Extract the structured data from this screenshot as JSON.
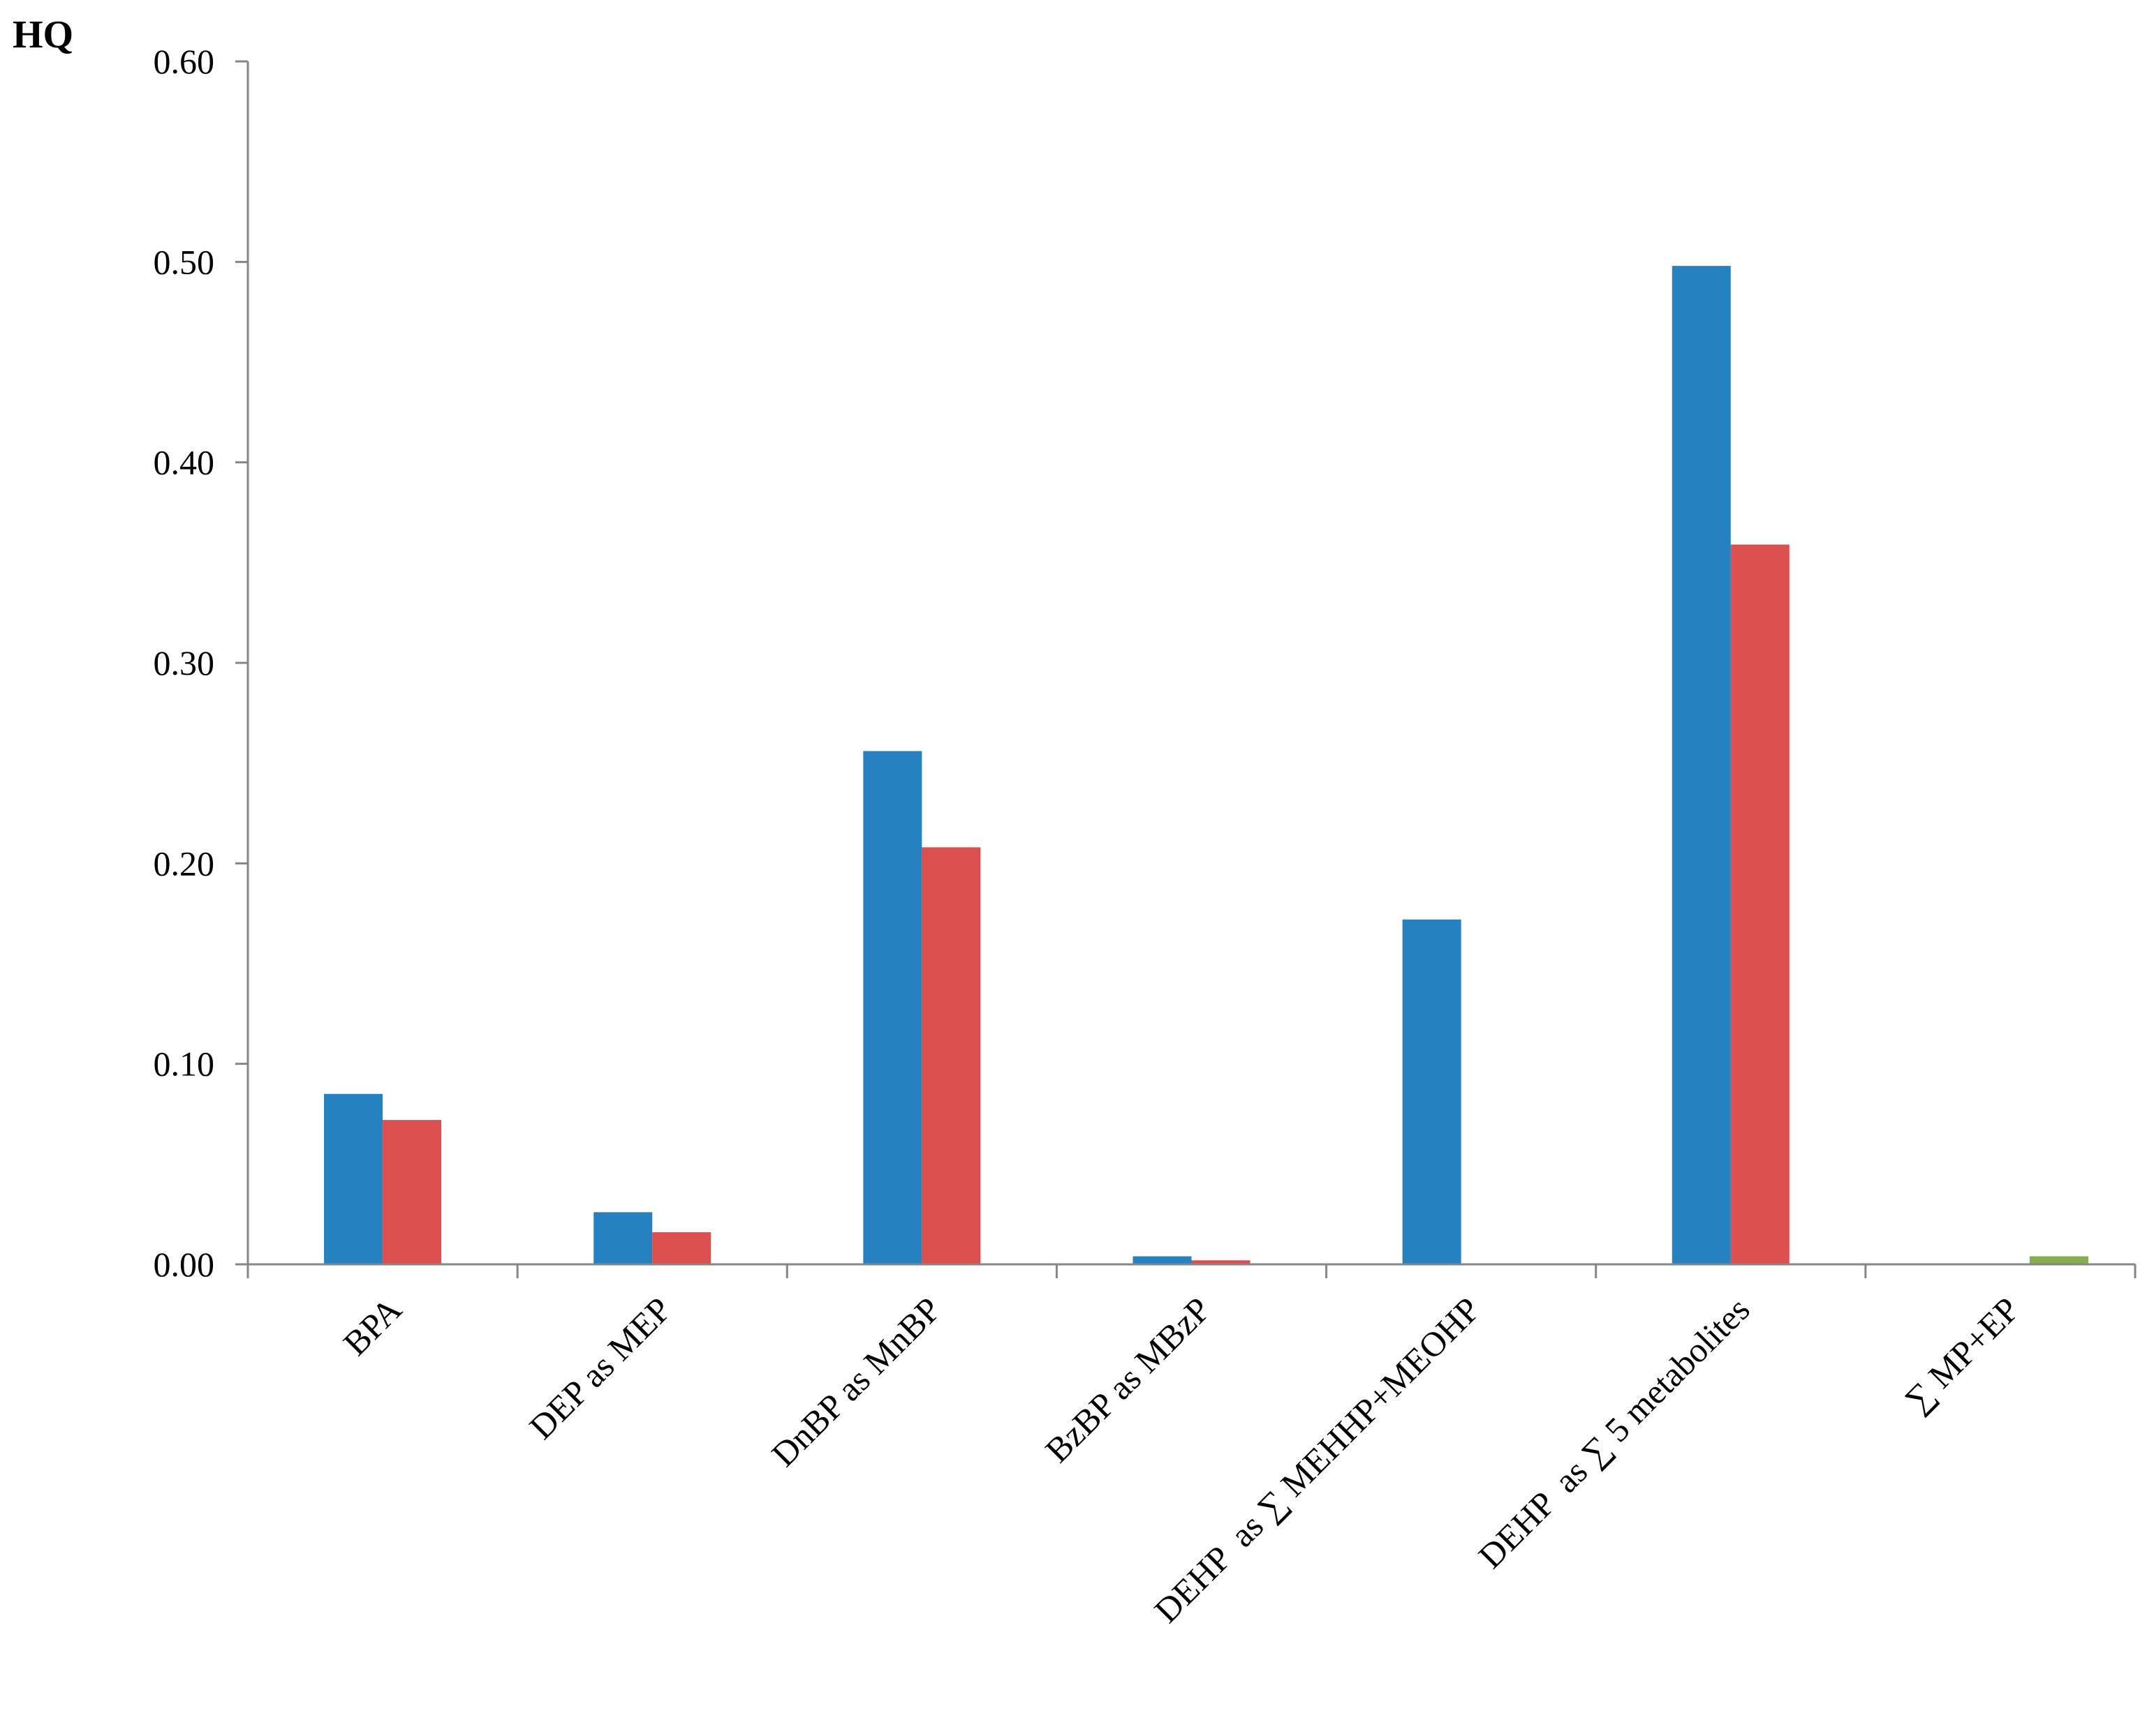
{
  "chart_data": {
    "type": "bar",
    "ylabel": "HQ",
    "xlabel": "",
    "ylim": [
      0,
      0.6
    ],
    "yticks": [
      "0.00",
      "0.10",
      "0.20",
      "0.30",
      "0.40",
      "0.50",
      "0.60"
    ],
    "grid": false,
    "legend": "none",
    "categories": [
      "BPA",
      "DEP as MEP",
      "DnBP as MnBP",
      "BzBP as MBzP",
      "DEHP  as ∑ MEHHP+MEOHP",
      "DEHP  as ∑ 5 metabolites",
      "∑ MP+EP"
    ],
    "series": [
      {
        "color": "#2581c0",
        "values": [
          0.085,
          0.026,
          0.256,
          0.004,
          0.172,
          0.498,
          null
        ]
      },
      {
        "color": "#db4f4f",
        "values": [
          0.072,
          0.016,
          0.208,
          0.002,
          null,
          0.359,
          null
        ]
      },
      {
        "color": "#87ae4d",
        "values": [
          null,
          null,
          null,
          null,
          null,
          null,
          0.004
        ]
      }
    ]
  }
}
